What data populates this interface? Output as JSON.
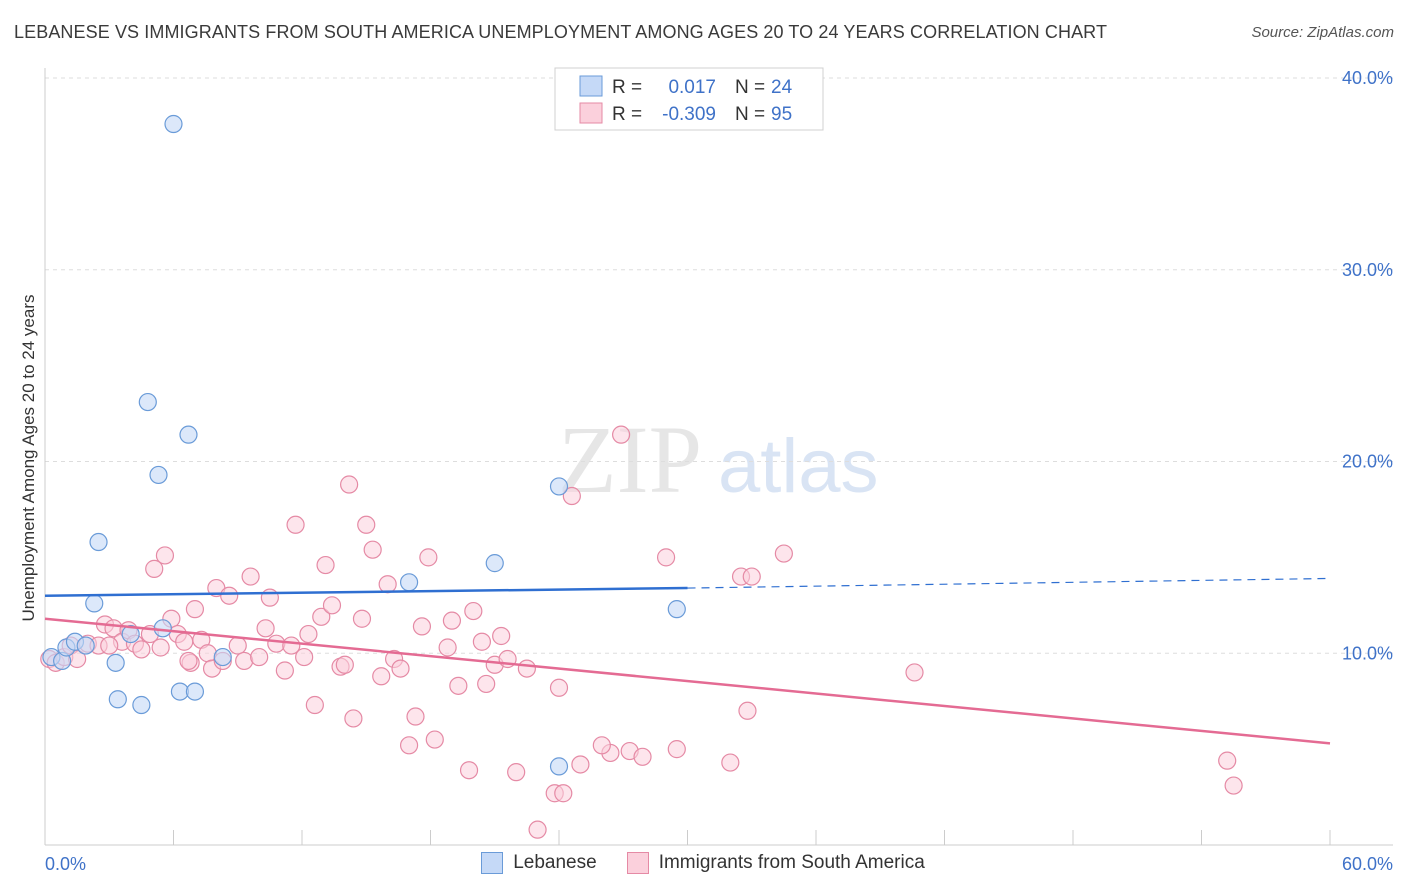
{
  "title": "LEBANESE VS IMMIGRANTS FROM SOUTH AMERICA UNEMPLOYMENT AMONG AGES 20 TO 24 YEARS CORRELATION CHART",
  "source": "Source: ZipAtlas.com",
  "watermark": {
    "zip": "ZIP",
    "atlas": "atlas"
  },
  "colors": {
    "blue_fill": "#c5d9f7",
    "blue_stroke": "#6a9bd8",
    "blue_line": "#2f6fd1",
    "pink_fill": "#fbd0dc",
    "pink_stroke": "#e58aa5",
    "pink_line": "#e46b93",
    "axis_text": "#3f72c8"
  },
  "stats_legend": [
    {
      "r_label": "R =",
      "r_value": "0.017",
      "n_label": "N =",
      "n_value": "24"
    },
    {
      "r_label": "R =",
      "r_value": "-0.309",
      "n_label": "N =",
      "n_value": "95"
    }
  ],
  "bottom_legend": [
    {
      "label": "Lebanese"
    },
    {
      "label": "Immigrants from South America"
    }
  ],
  "chart_data": {
    "type": "scatter",
    "title": "LEBANESE VS IMMIGRANTS FROM SOUTH AMERICA UNEMPLOYMENT AMONG AGES 20 TO 24 YEARS CORRELATION CHART",
    "xlabel": "",
    "ylabel": "Unemployment Among Ages 20 to 24 years",
    "xlim": [
      0,
      60
    ],
    "ylim": [
      0,
      40
    ],
    "x_tick_labels": [
      "0.0%",
      "60.0%"
    ],
    "y_ticks": [
      10,
      20,
      30,
      40
    ],
    "y_tick_labels": [
      "10.0%",
      "20.0%",
      "30.0%",
      "40.0%"
    ],
    "grid": true,
    "series": [
      {
        "name": "Lebanese",
        "r": 0.017,
        "n": 24,
        "points": [
          [
            0.3,
            9.8
          ],
          [
            0.8,
            9.6
          ],
          [
            1.0,
            10.3
          ],
          [
            1.4,
            10.6
          ],
          [
            1.9,
            10.4
          ],
          [
            2.3,
            12.6
          ],
          [
            2.5,
            15.8
          ],
          [
            3.3,
            9.5
          ],
          [
            3.4,
            7.6
          ],
          [
            4.0,
            11.0
          ],
          [
            4.5,
            7.3
          ],
          [
            4.8,
            23.1
          ],
          [
            5.3,
            19.3
          ],
          [
            5.5,
            11.3
          ],
          [
            6.0,
            37.6
          ],
          [
            6.3,
            8.0
          ],
          [
            6.7,
            21.4
          ],
          [
            7.0,
            8.0
          ],
          [
            8.3,
            9.8
          ],
          [
            17.0,
            13.7
          ],
          [
            21.0,
            14.7
          ],
          [
            24.0,
            4.1
          ],
          [
            24.0,
            18.7
          ],
          [
            29.5,
            12.3
          ]
        ],
        "trend": {
          "x": [
            0,
            30
          ],
          "y": [
            13.0,
            13.4
          ],
          "dashed_to": [
            60,
            13.9
          ]
        }
      },
      {
        "name": "Immigrants from South America",
        "r": -0.309,
        "n": 95,
        "points": [
          [
            0.2,
            9.7
          ],
          [
            0.5,
            9.5
          ],
          [
            0.9,
            9.8
          ],
          [
            1.2,
            10.4
          ],
          [
            1.5,
            9.7
          ],
          [
            2.0,
            10.5
          ],
          [
            2.5,
            10.4
          ],
          [
            2.8,
            11.5
          ],
          [
            3.2,
            11.3
          ],
          [
            3.6,
            10.6
          ],
          [
            3.9,
            11.2
          ],
          [
            4.2,
            10.5
          ],
          [
            4.5,
            10.2
          ],
          [
            4.9,
            11.0
          ],
          [
            5.1,
            14.4
          ],
          [
            5.4,
            10.3
          ],
          [
            5.6,
            15.1
          ],
          [
            5.9,
            11.8
          ],
          [
            6.2,
            11.0
          ],
          [
            6.5,
            10.6
          ],
          [
            6.8,
            9.5
          ],
          [
            7.0,
            12.3
          ],
          [
            7.3,
            10.7
          ],
          [
            7.6,
            10.0
          ],
          [
            7.8,
            9.2
          ],
          [
            8.0,
            13.4
          ],
          [
            8.3,
            9.6
          ],
          [
            8.6,
            13.0
          ],
          [
            9.0,
            10.4
          ],
          [
            9.3,
            9.6
          ],
          [
            9.6,
            14.0
          ],
          [
            10.0,
            9.8
          ],
          [
            10.3,
            11.3
          ],
          [
            10.5,
            12.9
          ],
          [
            10.8,
            10.5
          ],
          [
            11.2,
            9.1
          ],
          [
            11.5,
            10.4
          ],
          [
            11.7,
            16.7
          ],
          [
            12.1,
            9.8
          ],
          [
            12.3,
            11.0
          ],
          [
            12.6,
            7.3
          ],
          [
            12.9,
            11.9
          ],
          [
            13.1,
            14.6
          ],
          [
            13.4,
            12.5
          ],
          [
            13.8,
            9.3
          ],
          [
            14.2,
            18.8
          ],
          [
            14.4,
            6.6
          ],
          [
            14.8,
            11.8
          ],
          [
            15.0,
            16.7
          ],
          [
            15.3,
            15.4
          ],
          [
            15.7,
            8.8
          ],
          [
            16.0,
            13.6
          ],
          [
            16.3,
            9.7
          ],
          [
            16.6,
            9.2
          ],
          [
            17.0,
            5.2
          ],
          [
            17.3,
            6.7
          ],
          [
            17.6,
            11.4
          ],
          [
            17.9,
            15.0
          ],
          [
            18.2,
            5.5
          ],
          [
            18.8,
            10.3
          ],
          [
            19.0,
            11.7
          ],
          [
            19.3,
            8.3
          ],
          [
            19.8,
            3.9
          ],
          [
            20.4,
            10.6
          ],
          [
            20.6,
            8.4
          ],
          [
            21.0,
            9.4
          ],
          [
            21.3,
            10.9
          ],
          [
            21.6,
            9.7
          ],
          [
            22.0,
            3.8
          ],
          [
            22.5,
            9.2
          ],
          [
            23.0,
            0.8
          ],
          [
            23.8,
            2.7
          ],
          [
            24.0,
            8.2
          ],
          [
            24.2,
            2.7
          ],
          [
            24.6,
            18.2
          ],
          [
            25.0,
            4.2
          ],
          [
            26.4,
            4.8
          ],
          [
            26.9,
            21.4
          ],
          [
            27.3,
            4.9
          ],
          [
            27.9,
            4.6
          ],
          [
            29.0,
            15.0
          ],
          [
            29.5,
            5.0
          ],
          [
            32.0,
            4.3
          ],
          [
            32.5,
            14.0
          ],
          [
            32.8,
            7.0
          ],
          [
            33.0,
            14.0
          ],
          [
            34.5,
            15.2
          ],
          [
            40.6,
            9.0
          ],
          [
            55.2,
            4.4
          ],
          [
            55.5,
            3.1
          ],
          [
            26.0,
            5.2
          ],
          [
            20.0,
            12.2
          ],
          [
            3.0,
            10.4
          ],
          [
            6.7,
            9.6
          ],
          [
            14.0,
            9.4
          ]
        ],
        "trend": {
          "x": [
            0,
            60
          ],
          "y": [
            11.8,
            5.3
          ]
        }
      }
    ]
  }
}
